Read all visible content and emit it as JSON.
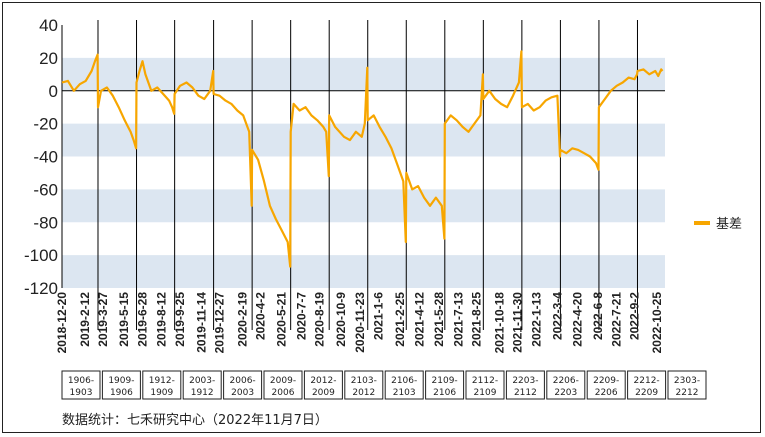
{
  "chart_data": {
    "type": "line",
    "title": "",
    "xlabel": "",
    "ylabel": "",
    "ylim": [
      -120,
      40
    ],
    "y_ticks": [
      40,
      20,
      0,
      -20,
      -40,
      -60,
      -80,
      -100,
      -120
    ],
    "band_ranges": [
      [
        0,
        20
      ],
      [
        -40,
        -20
      ],
      [
        -80,
        -60
      ],
      [
        -120,
        -100
      ]
    ],
    "band_color": "#DCE6F1",
    "line_color": "#F7A600",
    "x_dates": [
      "2018-12-20",
      "2019-2-12",
      "2019-3-27",
      "2019-5-15",
      "2019-6-28",
      "2019-8-12",
      "2019-9-25",
      "2019-11-14",
      "2019-12-27",
      "2020-2-19",
      "2020-4-2",
      "2020-5-21",
      "2020-7-7",
      "2020-8-19",
      "2020-10-9",
      "2020-11-23",
      "2021-1-6",
      "2021-2-25",
      "2021-4-12",
      "2021-5-28",
      "2021-7-13",
      "2021-8-25",
      "2021-10-18",
      "2021-11-30",
      "2022-1-13",
      "2022-3-4",
      "2022-4-20",
      "2022-6-8",
      "2022-7-21",
      "2022-9-2",
      "2022-10-25"
    ],
    "roll_dates": [
      "2019-3-15",
      "2019-6-14",
      "2019-9-12",
      "2019-12-13",
      "2020-3-13",
      "2020-6-12",
      "2020-9-11",
      "2020-12-11",
      "2021-3-12",
      "2021-6-11",
      "2021-9-10",
      "2021-12-10",
      "2022-3-11",
      "2022-6-10",
      "2022-9-9",
      "2022-12-9"
    ],
    "contracts": [
      "1906-1903",
      "1909-1906",
      "1912-1909",
      "2003-1912",
      "2006-2003",
      "2009-2006",
      "2012-2009",
      "2103-2012",
      "2106-2103",
      "2109-2106",
      "2112-2109",
      "2203-2112",
      "2206-2203",
      "2209-2206",
      "2212-2209",
      "2303-2212"
    ],
    "series": [
      {
        "name": "基差",
        "points": [
          [
            "2018-12-20",
            5
          ],
          [
            "2019-1-3",
            6
          ],
          [
            "2019-1-17",
            0
          ],
          [
            "2019-1-31",
            4
          ],
          [
            "2019-2-14",
            6
          ],
          [
            "2019-2-28",
            12
          ],
          [
            "2019-3-8",
            18
          ],
          [
            "2019-3-14",
            22
          ],
          [
            "2019-3-15",
            -10
          ],
          [
            "2019-3-22",
            0
          ],
          [
            "2019-4-5",
            2
          ],
          [
            "2019-4-19",
            -3
          ],
          [
            "2019-5-3",
            -10
          ],
          [
            "2019-5-17",
            -18
          ],
          [
            "2019-5-31",
            -25
          ],
          [
            "2019-6-7",
            -30
          ],
          [
            "2019-6-13",
            -35
          ],
          [
            "2019-6-14",
            5
          ],
          [
            "2019-6-21",
            12
          ],
          [
            "2019-6-28",
            18
          ],
          [
            "2019-7-5",
            10
          ],
          [
            "2019-7-19",
            0
          ],
          [
            "2019-8-2",
            2
          ],
          [
            "2019-8-16",
            -2
          ],
          [
            "2019-8-30",
            -6
          ],
          [
            "2019-9-6",
            -10
          ],
          [
            "2019-9-11",
            -14
          ],
          [
            "2019-9-12",
            -2
          ],
          [
            "2019-9-25",
            3
          ],
          [
            "2019-10-10",
            5
          ],
          [
            "2019-10-24",
            2
          ],
          [
            "2019-11-7",
            -3
          ],
          [
            "2019-11-21",
            -5
          ],
          [
            "2019-12-5",
            0
          ],
          [
            "2019-12-12",
            12
          ],
          [
            "2019-12-13",
            -2
          ],
          [
            "2019-12-27",
            -3
          ],
          [
            "2020-1-10",
            -6
          ],
          [
            "2020-1-24",
            -8
          ],
          [
            "2020-2-7",
            -12
          ],
          [
            "2020-2-21",
            -15
          ],
          [
            "2020-3-6",
            -25
          ],
          [
            "2020-3-12",
            -70
          ],
          [
            "2020-3-13",
            -36
          ],
          [
            "2020-3-27",
            -42
          ],
          [
            "2020-4-10",
            -55
          ],
          [
            "2020-4-24",
            -70
          ],
          [
            "2020-5-8",
            -78
          ],
          [
            "2020-5-22",
            -85
          ],
          [
            "2020-6-5",
            -92
          ],
          [
            "2020-6-11",
            -107
          ],
          [
            "2020-6-12",
            -25
          ],
          [
            "2020-6-19",
            -8
          ],
          [
            "2020-7-3",
            -12
          ],
          [
            "2020-7-17",
            -10
          ],
          [
            "2020-7-31",
            -15
          ],
          [
            "2020-8-14",
            -18
          ],
          [
            "2020-8-28",
            -22
          ],
          [
            "2020-9-4",
            -25
          ],
          [
            "2020-9-10",
            -52
          ],
          [
            "2020-9-11",
            -15
          ],
          [
            "2020-9-25",
            -22
          ],
          [
            "2020-10-16",
            -28
          ],
          [
            "2020-10-30",
            -30
          ],
          [
            "2020-11-13",
            -25
          ],
          [
            "2020-11-27",
            -28
          ],
          [
            "2020-12-4",
            -20
          ],
          [
            "2020-12-10",
            14
          ],
          [
            "2020-12-11",
            -18
          ],
          [
            "2020-12-25",
            -15
          ],
          [
            "2021-1-8",
            -22
          ],
          [
            "2021-1-22",
            -28
          ],
          [
            "2021-2-5",
            -35
          ],
          [
            "2021-2-19",
            -45
          ],
          [
            "2021-3-5",
            -55
          ],
          [
            "2021-3-11",
            -92
          ],
          [
            "2021-3-12",
            -50
          ],
          [
            "2021-3-26",
            -60
          ],
          [
            "2021-4-9",
            -58
          ],
          [
            "2021-4-23",
            -65
          ],
          [
            "2021-5-7",
            -70
          ],
          [
            "2021-5-21",
            -65
          ],
          [
            "2021-6-4",
            -70
          ],
          [
            "2021-6-10",
            -90
          ],
          [
            "2021-6-11",
            -20
          ],
          [
            "2021-6-25",
            -15
          ],
          [
            "2021-7-9",
            -18
          ],
          [
            "2021-7-23",
            -22
          ],
          [
            "2021-8-6",
            -25
          ],
          [
            "2021-8-20",
            -20
          ],
          [
            "2021-9-3",
            -15
          ],
          [
            "2021-9-9",
            10
          ],
          [
            "2021-9-10",
            -5
          ],
          [
            "2021-9-24",
            0
          ],
          [
            "2021-10-8",
            -5
          ],
          [
            "2021-10-22",
            -8
          ],
          [
            "2021-11-5",
            -10
          ],
          [
            "2021-11-19",
            -3
          ],
          [
            "2021-12-3",
            5
          ],
          [
            "2021-12-9",
            24
          ],
          [
            "2021-12-10",
            -10
          ],
          [
            "2021-12-24",
            -8
          ],
          [
            "2022-1-7",
            -12
          ],
          [
            "2022-1-21",
            -10
          ],
          [
            "2022-2-4",
            -6
          ],
          [
            "2022-2-18",
            -4
          ],
          [
            "2022-3-4",
            -3
          ],
          [
            "2022-3-10",
            -40
          ],
          [
            "2022-3-11",
            -36
          ],
          [
            "2022-3-25",
            -38
          ],
          [
            "2022-4-8",
            -35
          ],
          [
            "2022-4-22",
            -36
          ],
          [
            "2022-5-6",
            -38
          ],
          [
            "2022-5-20",
            -40
          ],
          [
            "2022-6-3",
            -44
          ],
          [
            "2022-6-9",
            -48
          ],
          [
            "2022-6-10",
            -10
          ],
          [
            "2022-6-24",
            -5
          ],
          [
            "2022-7-8",
            0
          ],
          [
            "2022-7-22",
            3
          ],
          [
            "2022-8-5",
            5
          ],
          [
            "2022-8-19",
            8
          ],
          [
            "2022-9-2",
            7
          ],
          [
            "2022-9-8",
            10
          ],
          [
            "2022-9-9",
            12
          ],
          [
            "2022-9-23",
            13
          ],
          [
            "2022-10-7",
            10
          ],
          [
            "2022-10-21",
            12
          ],
          [
            "2022-10-28",
            9
          ],
          [
            "2022-11-4",
            13
          ],
          [
            "2022-11-7",
            12
          ]
        ]
      }
    ],
    "legend": {
      "label": "基差",
      "placement": "right"
    }
  },
  "source": "数据统计：七禾研究中心（2022年11月7日）"
}
